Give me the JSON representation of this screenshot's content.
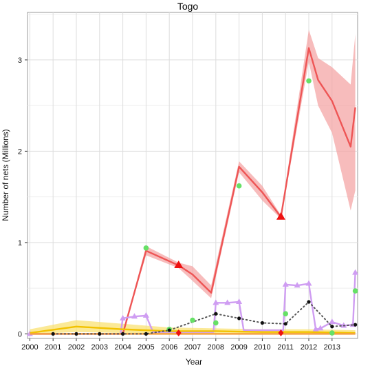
{
  "chart_data": {
    "type": "line",
    "title": "Togo",
    "xlabel": "Year",
    "ylabel": "Number of nets (Millions)",
    "xlim": [
      1999.9,
      2014.1
    ],
    "ylim": [
      -0.05,
      3.52
    ],
    "x_ticks": [
      "2000",
      "2001",
      "2002",
      "2003",
      "2004",
      "2005",
      "2006",
      "2007",
      "2008",
      "2009",
      "2010",
      "2011",
      "2012",
      "2013"
    ],
    "y_ticks": [
      "0",
      "1",
      "2",
      "3"
    ],
    "grid": true,
    "legend": "none",
    "series": [
      {
        "color": "#ee5555",
        "band_color": "#f4a0a0",
        "x": [
          2000,
          2004,
          2005,
          2006.4,
          2007,
          2007.8,
          2009,
          2010,
          2010.8,
          2012,
          2012.4,
          2013,
          2013.8,
          2014
        ],
        "y": [
          0,
          0,
          0.91,
          0.75,
          0.65,
          0.45,
          1.83,
          1.55,
          1.28,
          3.13,
          2.78,
          2.55,
          2.05,
          2.48
        ],
        "lower": [
          0,
          0,
          0.86,
          0.72,
          0.58,
          0.39,
          1.77,
          1.46,
          1.26,
          2.98,
          2.5,
          2.2,
          1.35,
          1.57
        ],
        "upper": [
          0,
          0,
          0.96,
          0.78,
          0.74,
          0.53,
          1.89,
          1.62,
          1.3,
          3.33,
          3.02,
          2.92,
          2.73,
          3.28
        ]
      },
      {
        "color": "#cf9df2",
        "x": [
          2000,
          2003.9,
          2004,
          2004.5,
          2005,
          2005.3,
          2007.9,
          2008,
          2008.5,
          2009,
          2009.2,
          2010.9,
          2011,
          2011.5,
          2012,
          2012.3,
          2012.5,
          2013,
          2013.5,
          2013.9,
          2014
        ],
        "y": [
          0,
          0,
          0.17,
          0.19,
          0.2,
          0.02,
          0.02,
          0.34,
          0.34,
          0.35,
          0.04,
          0.04,
          0.54,
          0.53,
          0.55,
          0.05,
          0.06,
          0.13,
          0.09,
          0.1,
          0.67
        ]
      },
      {
        "color": "#f2c200",
        "band_color": "#f9e06a",
        "x": [
          2000,
          2002,
          2004,
          2006,
          2008,
          2010,
          2012,
          2014
        ],
        "y": [
          0.01,
          0.08,
          0.05,
          0.03,
          0.03,
          0.02,
          0.02,
          0.01
        ],
        "lower": [
          0,
          0.02,
          0.01,
          0,
          0,
          0,
          0,
          0
        ],
        "upper": [
          0.05,
          0.15,
          0.11,
          0.07,
          0.06,
          0.05,
          0.05,
          0.04
        ]
      },
      {
        "color": "#f5a040",
        "x": [
          2000,
          2004,
          2006,
          2008,
          2010,
          2012,
          2014
        ],
        "y": [
          0,
          0,
          0,
          0,
          0,
          0,
          0
        ]
      },
      {
        "color": "#555555",
        "style": "dotted",
        "x": [
          2001,
          2002,
          2003,
          2004,
          2005,
          2006,
          2008,
          2009,
          2010,
          2011,
          2012,
          2013,
          2014
        ],
        "y": [
          0,
          0,
          0,
          0,
          0,
          0.04,
          0.22,
          0.17,
          0.12,
          0.11,
          0.35,
          0.08,
          0.1
        ]
      }
    ],
    "markers": [
      {
        "shape": "circle",
        "color": "#66e066",
        "points": [
          [
            2005,
            0.94
          ],
          [
            2006,
            0.05
          ],
          [
            2007,
            0.15
          ],
          [
            2008,
            0.12
          ],
          [
            2009,
            1.62
          ],
          [
            2011,
            0.22
          ],
          [
            2012,
            2.77
          ],
          [
            2013,
            0.01
          ],
          [
            2014,
            0.47
          ]
        ]
      },
      {
        "shape": "circle",
        "color": "#111111",
        "points": [
          [
            2001,
            0
          ],
          [
            2002,
            0
          ],
          [
            2003,
            0
          ],
          [
            2004,
            0
          ],
          [
            2005,
            0
          ],
          [
            2006,
            0.04
          ],
          [
            2008,
            0.22
          ],
          [
            2009,
            0.17
          ],
          [
            2010,
            0.12
          ],
          [
            2011,
            0.11
          ],
          [
            2012,
            0.35
          ],
          [
            2013,
            0.08
          ],
          [
            2014,
            0.1
          ]
        ]
      },
      {
        "shape": "triangle",
        "color": "#ee1111",
        "points": [
          [
            2006.4,
            0.75
          ],
          [
            2010.8,
            1.28
          ]
        ]
      },
      {
        "shape": "diamond",
        "color": "#ee1111",
        "points": [
          [
            2006.4,
            0.01
          ],
          [
            2010.8,
            0.01
          ]
        ]
      }
    ]
  }
}
